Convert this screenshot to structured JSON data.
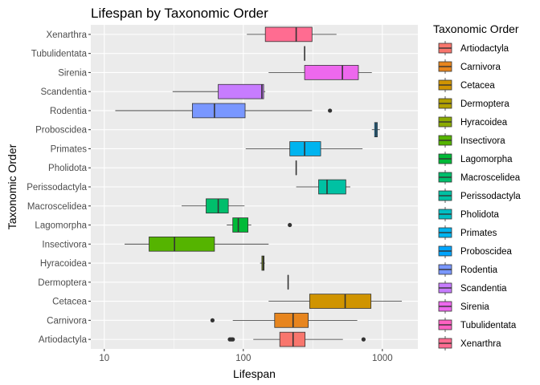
{
  "chart_data": {
    "type": "boxplot",
    "orientation": "horizontal",
    "title": "Lifespan by Taxonomic Order",
    "xlabel": "Lifespan",
    "ylabel": "Taxonomic Order",
    "x_scale": "log10",
    "xlim": [
      8,
      1800
    ],
    "x_ticks": [
      {
        "value": 10,
        "label": "10"
      },
      {
        "value": 100,
        "label": "100"
      },
      {
        "value": 1000,
        "label": "1000"
      }
    ],
    "grid": true,
    "legend_title": "Taxonomic Order",
    "legend_position": "right",
    "categories": [
      "Artiodactyla",
      "Carnivora",
      "Cetacea",
      "Dermoptera",
      "Hyracoidea",
      "Insectivora",
      "Lagomorpha",
      "Macroscelidea",
      "Perissodactyla",
      "Pholidota",
      "Primates",
      "Proboscidea",
      "Rodentia",
      "Scandentia",
      "Sirenia",
      "Tubulidentata",
      "Xenarthra"
    ],
    "series": [
      {
        "name": "Artiodactyla",
        "color": "#F8766D",
        "min": 118,
        "q1": 183,
        "median": 228,
        "q3": 278,
        "max": 520,
        "outliers": [
          80,
          82,
          84,
          732
        ]
      },
      {
        "name": "Carnivora",
        "color": "#E7851E",
        "min": 84,
        "q1": 168,
        "median": 228,
        "q3": 293,
        "max": 660,
        "outliers": [
          60
        ]
      },
      {
        "name": "Cetacea",
        "color": "#D09400",
        "min": 152,
        "q1": 300,
        "median": 540,
        "q3": 828,
        "max": 1380,
        "outliers": []
      },
      {
        "name": "Dermoptera",
        "color": "#B2A100",
        "min": 210,
        "q1": 210,
        "median": 210,
        "q3": 210,
        "max": 210,
        "outliers": []
      },
      {
        "name": "Hyracoidea",
        "color": "#8BAB00",
        "min": 132,
        "q1": 136,
        "median": 139,
        "q3": 141,
        "max": 143,
        "outliers": []
      },
      {
        "name": "Insectivora",
        "color": "#55B400",
        "min": 14,
        "q1": 21,
        "median": 32,
        "q3": 62,
        "max": 152,
        "outliers": []
      },
      {
        "name": "Lagomorpha",
        "color": "#00BA38",
        "min": 76,
        "q1": 84,
        "median": 92,
        "q3": 108,
        "max": 114,
        "outliers": [
          216
        ]
      },
      {
        "name": "Macroscelidea",
        "color": "#00BE6C",
        "min": 36,
        "q1": 54,
        "median": 66,
        "q3": 78,
        "max": 102,
        "outliers": []
      },
      {
        "name": "Perissodactyla",
        "color": "#00C1A3",
        "min": 240,
        "q1": 348,
        "median": 400,
        "q3": 546,
        "max": 588,
        "outliers": []
      },
      {
        "name": "Pholidota",
        "color": "#00BFC4",
        "min": 240,
        "q1": 240,
        "median": 240,
        "q3": 240,
        "max": 240,
        "outliers": []
      },
      {
        "name": "Primates",
        "color": "#00B4EF",
        "min": 104,
        "q1": 216,
        "median": 276,
        "q3": 360,
        "max": 720,
        "outliers": []
      },
      {
        "name": "Proboscidea",
        "color": "#00A5FF",
        "min": 840,
        "q1": 880,
        "median": 900,
        "q3": 920,
        "max": 960,
        "outliers": []
      },
      {
        "name": "Rodentia",
        "color": "#7997FF",
        "min": 12,
        "q1": 43,
        "median": 62,
        "q3": 103,
        "max": 312,
        "outliers": [
          420
        ]
      },
      {
        "name": "Scandentia",
        "color": "#C77CFF",
        "min": 31,
        "q1": 66,
        "median": 136,
        "q3": 140,
        "max": 144,
        "outliers": []
      },
      {
        "name": "Sirenia",
        "color": "#ED68ED",
        "min": 152,
        "q1": 276,
        "median": 516,
        "q3": 672,
        "max": 840,
        "outliers": []
      },
      {
        "name": "Tubulidentata",
        "color": "#FF61C3",
        "min": 276,
        "q1": 276,
        "median": 276,
        "q3": 276,
        "max": 276,
        "outliers": []
      },
      {
        "name": "Xenarthra",
        "color": "#FF6C91",
        "min": 106,
        "q1": 144,
        "median": 240,
        "q3": 312,
        "max": 468,
        "outliers": []
      }
    ]
  }
}
